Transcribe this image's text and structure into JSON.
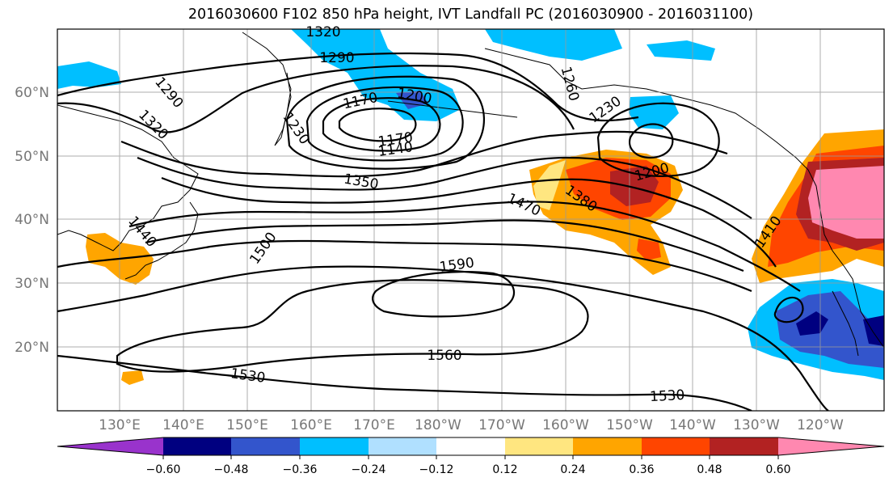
{
  "title": "2016030600 F102 850 hPa height, IVT Landfall PC (2016030900 - 2016031100)",
  "latitude_labels": [
    "60°N",
    "50°N",
    "40°N",
    "30°N",
    "20°N"
  ],
  "longitude_labels": [
    "130°E",
    "140°E",
    "150°E",
    "160°E",
    "170°E",
    "180°W",
    "170°W",
    "160°W",
    "150°W",
    "140°W",
    "130°W",
    "120°W"
  ],
  "contour_labels": [
    "1320",
    "1290",
    "1290",
    "1320",
    "1170",
    "1200",
    "1230",
    "1170",
    "1140",
    "1260",
    "1230",
    "1200",
    "1350",
    "1380",
    "1470",
    "1410",
    "1440",
    "1500",
    "1590",
    "1560",
    "1530",
    "1530"
  ],
  "colorbar": {
    "ticks": [
      "−0.60",
      "−0.48",
      "−0.36",
      "−0.24",
      "−0.12",
      "0.12",
      "0.24",
      "0.36",
      "0.48",
      "0.60"
    ],
    "colors": [
      "#9933cc",
      "#000080",
      "#3355cc",
      "#00bfff",
      "#b0e0ff",
      "#ffffff",
      "#ffe680",
      "#ffa500",
      "#ff4500",
      "#b22222",
      "#ff88b0"
    ]
  },
  "colors": {
    "neg_strong": "#3355cc",
    "neg_mid": "#00bfff",
    "neg_weak": "#b0e0ff",
    "pos_weak": "#ffe680",
    "pos_mid": "#ffa500",
    "pos_strong": "#ff4500",
    "pos_stronger": "#b22222",
    "pos_max": "#ff88b0",
    "very_neg": "#000080"
  }
}
